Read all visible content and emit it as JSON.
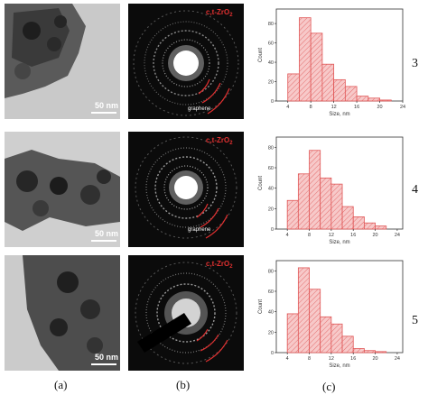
{
  "figure": {
    "column_labels": [
      "(a)",
      "(b)",
      "(c)"
    ],
    "row_labels": [
      "3",
      "4",
      "5"
    ],
    "scale_bar_text": "50 nm",
    "phase_label": "c,t-ZrO",
    "phase_subscript": "2",
    "graphene_label": "graphene",
    "colors": {
      "bar_fill": "#f7c9c9",
      "bar_edge": "#e05656",
      "ring": "#e03030"
    }
  },
  "chart_data": [
    {
      "type": "bar",
      "categories": [
        "3",
        "5",
        "7",
        "9",
        "11",
        "13",
        "15",
        "17",
        "19",
        "21"
      ],
      "values": [
        0,
        28,
        86,
        70,
        38,
        22,
        15,
        5,
        3,
        1
      ],
      "xlabel": "Size, nm",
      "ylabel": "Count",
      "xticks": [
        "4",
        "8",
        "12",
        "16",
        "20",
        "24"
      ],
      "yticks": [
        "0",
        "20",
        "40",
        "60",
        "80"
      ],
      "xlim": [
        2,
        24
      ],
      "ylim": [
        0,
        95
      ]
    },
    {
      "type": "bar",
      "categories": [
        "5",
        "7",
        "9",
        "11",
        "13",
        "15",
        "17",
        "19",
        "21"
      ],
      "values": [
        28,
        54,
        77,
        50,
        44,
        22,
        12,
        6,
        3
      ],
      "xlabel": "Size, nm",
      "ylabel": "Count",
      "xticks": [
        "4",
        "8",
        "12",
        "16",
        "20",
        "24"
      ],
      "yticks": [
        "0",
        "20",
        "40",
        "60",
        "80"
      ],
      "xlim": [
        2,
        25
      ],
      "ylim": [
        0,
        90
      ]
    },
    {
      "type": "bar",
      "categories": [
        "5",
        "7",
        "9",
        "11",
        "13",
        "15",
        "17",
        "19",
        "21"
      ],
      "values": [
        38,
        83,
        62,
        35,
        28,
        16,
        4,
        2,
        1
      ],
      "xlabel": "Size, nm",
      "ylabel": "Count",
      "xticks": [
        "4",
        "8",
        "12",
        "16",
        "20",
        "24"
      ],
      "yticks": [
        "0",
        "20",
        "40",
        "60",
        "80"
      ],
      "xlim": [
        2,
        25
      ],
      "ylim": [
        0,
        90
      ]
    }
  ]
}
